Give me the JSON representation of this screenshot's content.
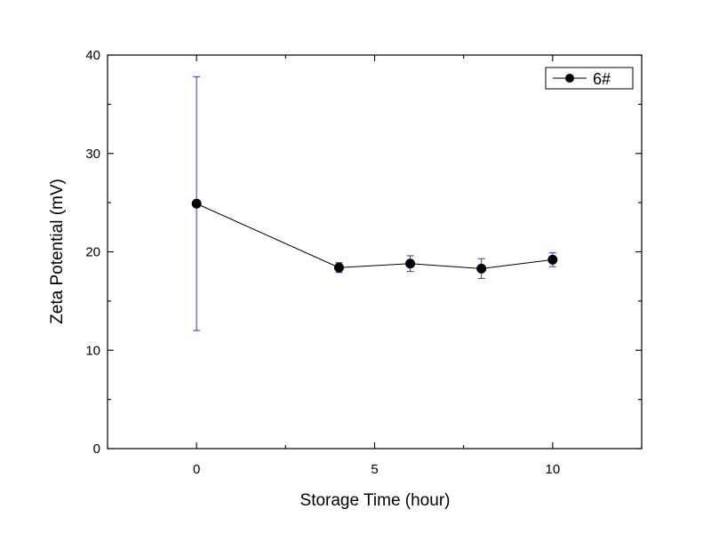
{
  "chart_data": {
    "type": "scatter",
    "xlabel": "Storage Time (hour)",
    "ylabel": "Zeta Potential (mV)",
    "xlim": [
      -2.5,
      12.5
    ],
    "ylim": [
      0,
      40
    ],
    "xticks": [
      0,
      5,
      10
    ],
    "yticks": [
      0,
      10,
      20,
      30,
      40
    ],
    "grid": false,
    "legend_position": "top-right",
    "series": [
      {
        "name": "6#",
        "x": [
          0,
          4,
          6,
          8,
          10
        ],
        "y": [
          24.9,
          18.4,
          18.8,
          18.3,
          19.2
        ],
        "error": [
          12.9,
          0.5,
          0.8,
          1.0,
          0.7
        ],
        "line_color": "#000000",
        "marker_color": "#000000",
        "error_color": "#3333cc"
      }
    ]
  }
}
